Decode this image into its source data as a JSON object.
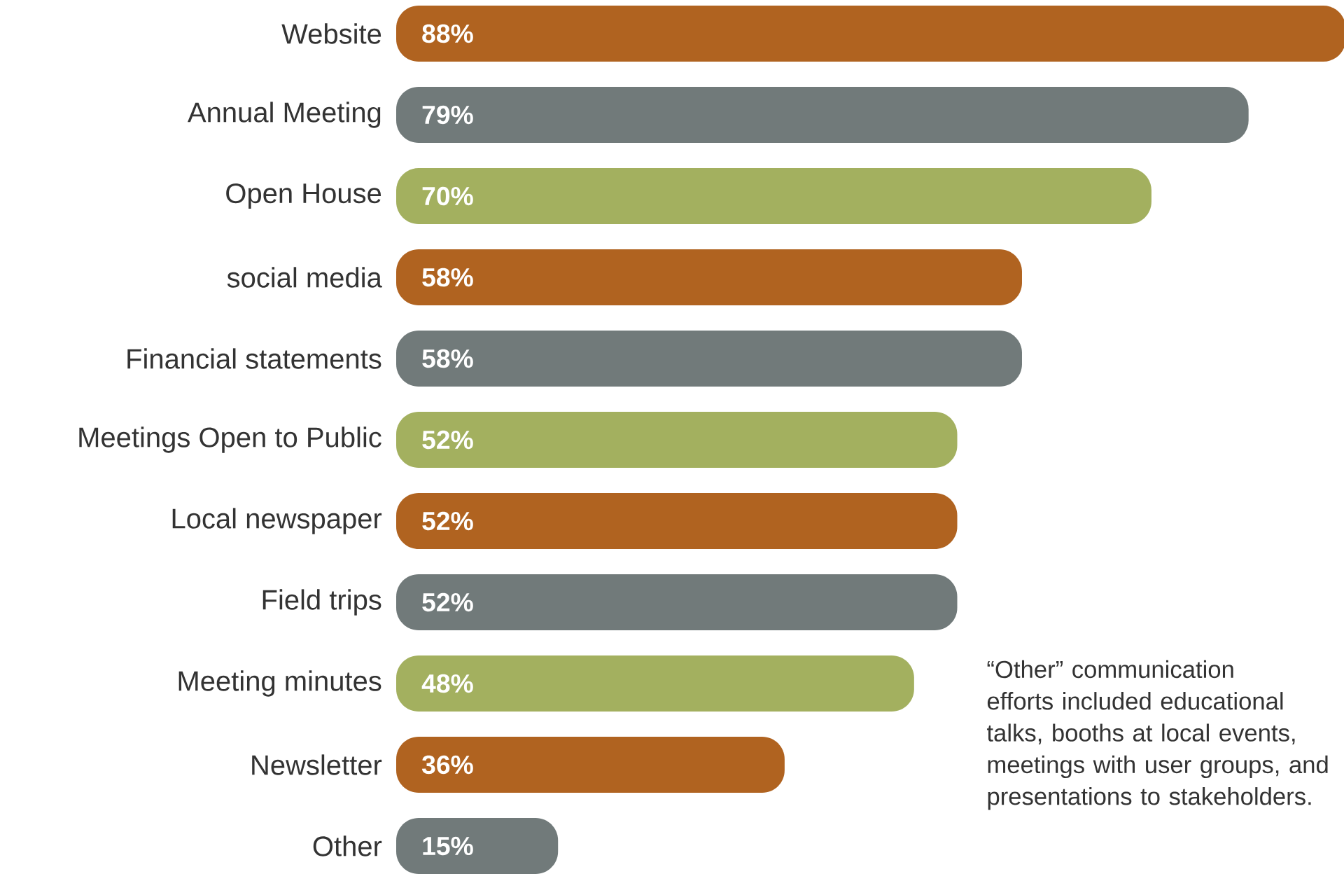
{
  "chart_data": {
    "type": "bar",
    "orientation": "horizontal",
    "categories": [
      "Website",
      "Annual Meeting",
      "Open House",
      "social media",
      "Financial statements",
      "Meetings Open to Public",
      "Local newspaper",
      "Field trips",
      "Meeting minutes",
      "Newsletter",
      "Other"
    ],
    "values": [
      88,
      79,
      70,
      58,
      58,
      52,
      52,
      52,
      48,
      36,
      15
    ],
    "value_labels": [
      "88%",
      "79%",
      "70%",
      "58%",
      "58%",
      "52%",
      "52%",
      "52%",
      "48%",
      "36%",
      "15%"
    ],
    "colors": [
      "#b06320",
      "#717a7a",
      "#a3b05f",
      "#b06320",
      "#717a7a",
      "#a3b05f",
      "#b06320",
      "#717a7a",
      "#a3b05f",
      "#b06320",
      "#717a7a"
    ],
    "annotations": [
      "“Other” communication efforts included educational talks, booths at local events, meetings with user groups, and presentations to stakeholders."
    ]
  }
}
